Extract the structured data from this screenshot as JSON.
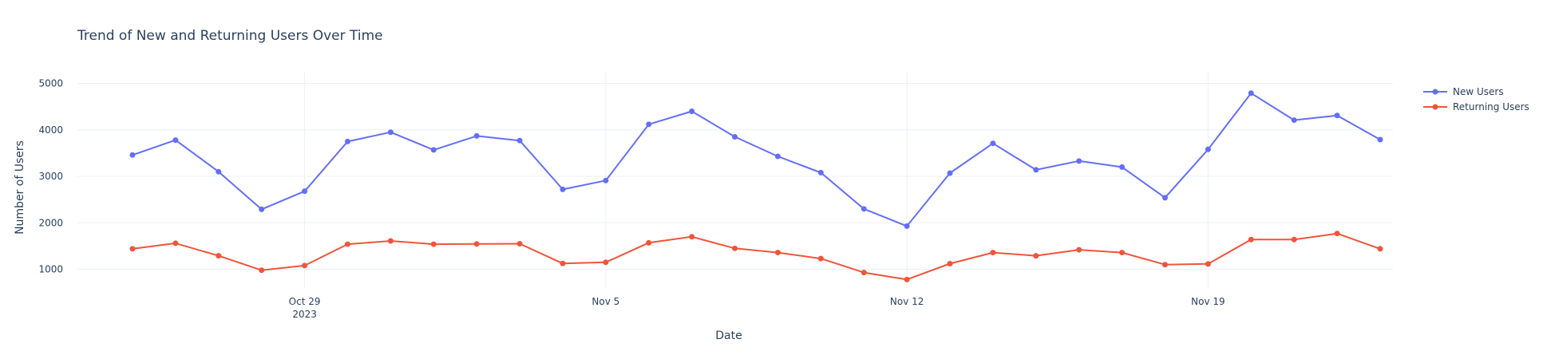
{
  "chart_data": {
    "type": "line",
    "title": "Trend of New and Returning Users Over Time",
    "xlabel": "Date",
    "ylabel": "Number of Users",
    "x": [
      "2023-10-25",
      "2023-10-26",
      "2023-10-27",
      "2023-10-28",
      "2023-10-29",
      "2023-10-30",
      "2023-10-31",
      "2023-11-01",
      "2023-11-02",
      "2023-11-03",
      "2023-11-04",
      "2023-11-05",
      "2023-11-06",
      "2023-11-07",
      "2023-11-08",
      "2023-11-09",
      "2023-11-10",
      "2023-11-11",
      "2023-11-12",
      "2023-11-13",
      "2023-11-14",
      "2023-11-15",
      "2023-11-16",
      "2023-11-17",
      "2023-11-18",
      "2023-11-19",
      "2023-11-20",
      "2023-11-21",
      "2023-11-22",
      "2023-11-23"
    ],
    "x_ticks": [
      {
        "date": "2023-10-29",
        "label": "Oct 29",
        "sublabel": "2023"
      },
      {
        "date": "2023-11-05",
        "label": "Nov 5",
        "sublabel": ""
      },
      {
        "date": "2023-11-12",
        "label": "Nov 12",
        "sublabel": ""
      },
      {
        "date": "2023-11-19",
        "label": "Nov 19",
        "sublabel": ""
      }
    ],
    "y_ticks": [
      1000,
      2000,
      3000,
      4000,
      5000
    ],
    "ylim": [
      580,
      5250
    ],
    "grid": true,
    "legend_position": "top-right",
    "series": [
      {
        "name": "New Users",
        "color": "#636efa",
        "values": [
          3460,
          3780,
          3100,
          2290,
          2680,
          3750,
          3950,
          3570,
          3870,
          3770,
          2720,
          2910,
          4120,
          4400,
          3850,
          3430,
          3080,
          2300,
          1930,
          3070,
          3710,
          3140,
          3330,
          3200,
          2540,
          3580,
          4790,
          4210,
          4310,
          3790
        ]
      },
      {
        "name": "Returning Users",
        "color": "#ef553b",
        "values": [
          1440,
          1560,
          1290,
          980,
          1080,
          1540,
          1610,
          1540,
          1545,
          1550,
          1125,
          1150,
          1570,
          1700,
          1450,
          1360,
          1230,
          930,
          780,
          1120,
          1360,
          1290,
          1420,
          1360,
          1100,
          1115,
          1640,
          1640,
          1770,
          1440
        ]
      }
    ]
  }
}
